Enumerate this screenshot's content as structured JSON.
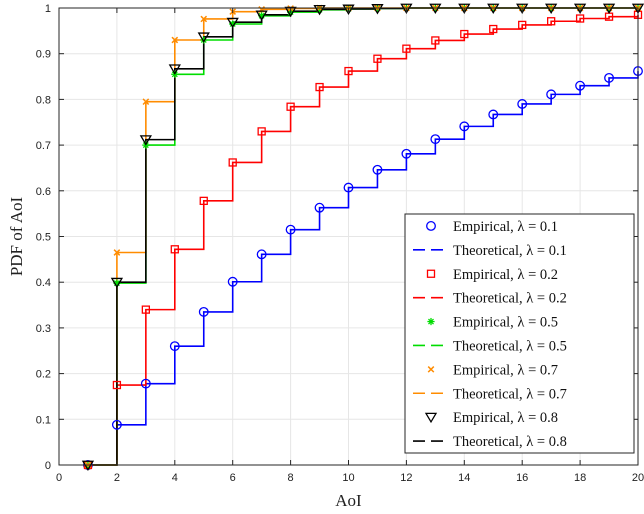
{
  "chart_data": {
    "type": "line",
    "xlabel": "AoI",
    "ylabel": "PDF of AoI",
    "xlim": [
      0,
      20
    ],
    "ylim": [
      0,
      1
    ],
    "xticks": [
      0,
      2,
      4,
      6,
      8,
      10,
      12,
      14,
      16,
      18,
      20
    ],
    "yticks": [
      0,
      0.1,
      0.2,
      0.3,
      0.4,
      0.5,
      0.6,
      0.7,
      0.8,
      0.9,
      1
    ],
    "grid": true,
    "legend_position": "lower-right",
    "series": [
      {
        "lambda": 0.1,
        "color": "#0000ff",
        "empirical_label": "Empirical, λ = 0.1",
        "theoretical_label": "Theoretical, λ = 0.1",
        "marker": "circle",
        "x": [
          1,
          2,
          3,
          4,
          5,
          6,
          7,
          8,
          9,
          10,
          11,
          12,
          13,
          14,
          15,
          16,
          17,
          18,
          19,
          20
        ],
        "y": [
          0,
          0.088,
          0.178,
          0.26,
          0.335,
          0.401,
          0.461,
          0.515,
          0.563,
          0.607,
          0.646,
          0.681,
          0.713,
          0.741,
          0.767,
          0.79,
          0.811,
          0.83,
          0.847,
          0.862
        ]
      },
      {
        "lambda": 0.2,
        "color": "#ff0000",
        "empirical_label": "Empirical, λ = 0.2",
        "theoretical_label": "Theoretical, λ = 0.2",
        "marker": "square",
        "x": [
          1,
          2,
          3,
          4,
          5,
          6,
          7,
          8,
          9,
          10,
          11,
          12,
          13,
          14,
          15,
          16,
          17,
          18,
          19,
          20
        ],
        "y": [
          0,
          0.175,
          0.34,
          0.472,
          0.578,
          0.662,
          0.73,
          0.784,
          0.827,
          0.862,
          0.889,
          0.911,
          0.929,
          0.943,
          0.954,
          0.963,
          0.971,
          0.977,
          0.981,
          0.985
        ]
      },
      {
        "lambda": 0.5,
        "color": "#00dd00",
        "empirical_label": "Empirical, λ = 0.5",
        "theoretical_label": "Theoretical, λ = 0.5",
        "marker": "asterisk",
        "x": [
          1,
          2,
          3,
          4,
          5,
          6,
          7,
          8,
          9,
          10,
          11,
          12,
          13,
          14,
          15,
          16,
          17,
          18,
          19,
          20
        ],
        "y": [
          0,
          0.398,
          0.7,
          0.855,
          0.93,
          0.965,
          0.983,
          0.991,
          0.996,
          0.998,
          0.999,
          1,
          1,
          1,
          1,
          1,
          1,
          1,
          1,
          1
        ]
      },
      {
        "lambda": 0.7,
        "color": "#ff8c00",
        "empirical_label": "Empirical, λ = 0.7",
        "theoretical_label": "Theoretical, λ = 0.7",
        "marker": "x",
        "x": [
          1,
          2,
          3,
          4,
          5,
          6,
          7,
          8,
          9,
          10,
          11,
          12,
          13,
          14,
          15,
          16,
          17,
          18,
          19,
          20
        ],
        "y": [
          0,
          0.465,
          0.795,
          0.93,
          0.976,
          0.992,
          0.997,
          0.999,
          1,
          1,
          1,
          1,
          1,
          1,
          1,
          1,
          1,
          1,
          1,
          1
        ]
      },
      {
        "lambda": 0.8,
        "color": "#000000",
        "empirical_label": "Empirical, λ = 0.8",
        "theoretical_label": "Theoretical, λ = 0.8",
        "marker": "triangle-down",
        "x": [
          1,
          2,
          3,
          4,
          5,
          6,
          7,
          8,
          9,
          10,
          11,
          12,
          13,
          14,
          15,
          16,
          17,
          18,
          19,
          20
        ],
        "y": [
          0,
          0.4,
          0.712,
          0.867,
          0.937,
          0.969,
          0.985,
          0.993,
          0.997,
          0.998,
          0.999,
          1,
          1,
          1,
          1,
          1,
          1,
          1,
          1,
          1
        ]
      }
    ]
  }
}
